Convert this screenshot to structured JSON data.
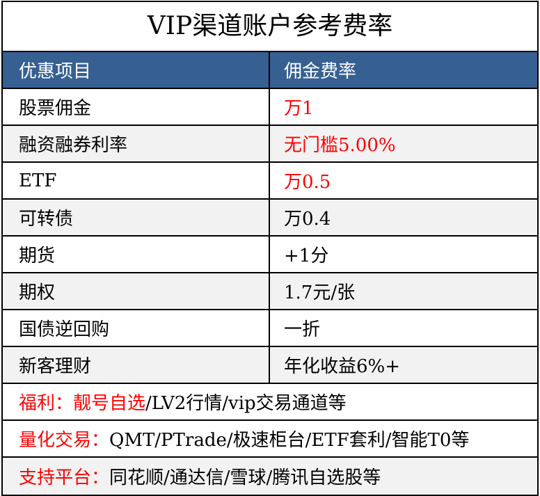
{
  "title": "VIP渠道账户参考费率",
  "header": {
    "col1": "优惠项目",
    "col2": "佣金费率"
  },
  "accent_color": "#ff0000",
  "header_color": "#376092",
  "rows": [
    {
      "item": "股票佣金",
      "rate": "万1",
      "highlight": true
    },
    {
      "item": "融资融券利率",
      "rate": "无门槛5.00%",
      "highlight": true
    },
    {
      "item": "ETF",
      "rate": "万0.5",
      "highlight": true
    },
    {
      "item": "可转债",
      "rate": "万0.4",
      "highlight": false
    },
    {
      "item": "期货",
      "rate": "+1分",
      "highlight": false
    },
    {
      "item": "期权",
      "rate": "1.7元/张",
      "highlight": false
    },
    {
      "item": "国债逆回购",
      "rate": "一折",
      "highlight": false
    },
    {
      "item": "新客理财",
      "rate": "年化收益6%+",
      "highlight": false
    }
  ],
  "footer": [
    {
      "label": "福利：靓号自选",
      "text": "/LV2行情/vip交易通道等"
    },
    {
      "label": "量化交易：",
      "text": "QMT/PTrade/极速柜台/ETF套利/智能T0等"
    },
    {
      "label": "支持平台：",
      "text": "同花顺/通达信/雪球/腾讯自选股等"
    }
  ]
}
